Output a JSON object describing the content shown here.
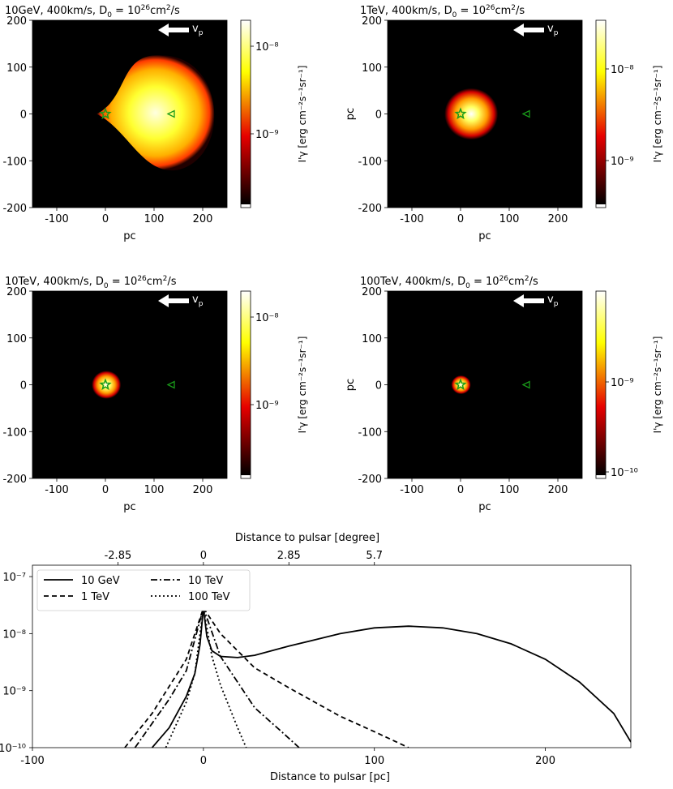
{
  "chart_data": [
    {
      "type": "heatmap",
      "title": "10GeV, 400km/s, D",
      "title_sub": "0",
      "title_eq": " = 10",
      "title_sup": "26",
      "title_unit": "cm",
      "title_unit_sup": "2",
      "title_unit_end": "/s",
      "xlabel": "pc",
      "ylabel": "",
      "xlim": [
        -150,
        250
      ],
      "ylim": [
        -200,
        200
      ],
      "xticks": [
        "-100",
        "0",
        "100",
        "200"
      ],
      "yticks": [
        "200",
        "100",
        "0",
        "-100",
        "-200"
      ],
      "arrow_label": "v",
      "arrow_sub": "p",
      "pulsar_pos": [
        0,
        0
      ],
      "source_pos": [
        135,
        0
      ],
      "blob": {
        "center": [
          115,
          0
        ],
        "radius": 125,
        "compression_left": 0.7
      },
      "colorbar": {
        "label": "I'γ [erg cm⁻²s⁻¹sr⁻¹]",
        "ticks": [
          "10⁻⁸",
          "10⁻⁹"
        ],
        "tick_exp": [
          -8,
          -9
        ]
      }
    },
    {
      "type": "heatmap",
      "title": "1TeV, 400km/s, D",
      "title_sub": "0",
      "title_eq": " = 10",
      "title_sup": "26",
      "title_unit": "cm",
      "title_unit_sup": "2",
      "title_unit_end": "/s",
      "xlabel": "pc",
      "ylabel": "pc",
      "xlim": [
        -150,
        250
      ],
      "ylim": [
        -200,
        200
      ],
      "xticks": [
        "-100",
        "0",
        "100",
        "200"
      ],
      "yticks": [
        "200",
        "100",
        "0",
        "-100",
        "-200"
      ],
      "arrow_label": "v",
      "arrow_sub": "p",
      "pulsar_pos": [
        0,
        0
      ],
      "source_pos": [
        135,
        0
      ],
      "blob": {
        "center": [
          22,
          0
        ],
        "radius": 55
      },
      "colorbar": {
        "label": "I'γ [erg cm⁻²s⁻¹sr⁻¹]",
        "ticks": [
          "10⁻⁸",
          "10⁻⁹"
        ],
        "tick_exp": [
          -8,
          -9
        ]
      }
    },
    {
      "type": "heatmap",
      "title": "10TeV, 400km/s, D",
      "title_sub": "0",
      "title_eq": " = 10",
      "title_sup": "26",
      "title_unit": "cm",
      "title_unit_sup": "2",
      "title_unit_end": "/s",
      "xlabel": "pc",
      "ylabel": "",
      "xlim": [
        -150,
        250
      ],
      "ylim": [
        -200,
        200
      ],
      "xticks": [
        "-100",
        "0",
        "100",
        "200"
      ],
      "yticks": [
        "200",
        "100",
        "0",
        "-100",
        "-200"
      ],
      "arrow_label": "v",
      "arrow_sub": "p",
      "pulsar_pos": [
        0,
        0
      ],
      "source_pos": [
        135,
        0
      ],
      "blob": {
        "center": [
          2,
          0
        ],
        "radius": 30
      },
      "colorbar": {
        "label": "I'γ [erg cm⁻²s⁻¹sr⁻¹]",
        "ticks": [
          "10⁻⁸",
          "10⁻⁹"
        ],
        "tick_exp": [
          -8,
          -9
        ]
      }
    },
    {
      "type": "heatmap",
      "title": "100TeV, 400km/s, D",
      "title_sub": "0",
      "title_eq": " = 10",
      "title_sup": "26",
      "title_unit": "cm",
      "title_unit_sup": "2",
      "title_unit_end": "/s",
      "xlabel": "pc",
      "ylabel": "pc",
      "xlim": [
        -150,
        250
      ],
      "ylim": [
        -200,
        200
      ],
      "xticks": [
        "-100",
        "0",
        "100",
        "200"
      ],
      "yticks": [
        "200",
        "100",
        "0",
        "-100",
        "-200"
      ],
      "arrow_label": "v",
      "arrow_sub": "p",
      "pulsar_pos": [
        0,
        0
      ],
      "source_pos": [
        135,
        0
      ],
      "blob": {
        "center": [
          1,
          0
        ],
        "radius": 20
      },
      "colorbar": {
        "label": "I'γ [erg cm⁻²s⁻¹sr⁻¹]",
        "ticks": [
          "10⁻⁹",
          "10⁻¹⁰"
        ],
        "tick_exp": [
          -9,
          -10
        ]
      }
    },
    {
      "type": "line",
      "title": "",
      "xlabel": "Distance to pulsar [pc]",
      "x2label": "Distance to pulsar [degree]",
      "xlim": [
        -100,
        250
      ],
      "ylim_log10": [
        -10,
        -6.8
      ],
      "xticks": [
        -100,
        0,
        100,
        200
      ],
      "xtick_labels": [
        "-100",
        "0",
        "100",
        "200"
      ],
      "x2ticks_pc": [
        -50,
        0,
        50,
        100
      ],
      "x2tick_labels": [
        "-2.85",
        "0",
        "2.85",
        "5.7"
      ],
      "yticks_log10": [
        -7,
        -8,
        -9,
        -10
      ],
      "ytick_labels": [
        "10⁻⁷",
        "10⁻⁸",
        "10⁻⁹",
        "10⁻¹⁰"
      ],
      "legend": [
        "10 GeV",
        "1 TeV",
        "10 TeV",
        "100 TeV"
      ],
      "legend_position": "top-left",
      "series": [
        {
          "name": "10 GeV",
          "dash": "solid",
          "x": [
            -30,
            -20,
            -10,
            -5,
            -2,
            0,
            2,
            5,
            10,
            20,
            30,
            50,
            80,
            100,
            120,
            140,
            160,
            180,
            200,
            220,
            240,
            250
          ],
          "log10_y": [
            -10,
            -9.65,
            -9.1,
            -8.7,
            -8.2,
            -7.55,
            -8.05,
            -8.3,
            -8.4,
            -8.42,
            -8.38,
            -8.22,
            -8.0,
            -7.9,
            -7.87,
            -7.9,
            -8.0,
            -8.18,
            -8.45,
            -8.85,
            -9.4,
            -9.9
          ]
        },
        {
          "name": "1 TeV",
          "dash": "dashed",
          "x": [
            -46,
            -30,
            -10,
            0,
            10,
            30,
            50,
            80,
            100,
            120
          ],
          "log10_y": [
            -10,
            -9.4,
            -8.45,
            -7.55,
            -8.0,
            -8.6,
            -8.95,
            -9.45,
            -9.72,
            -10
          ]
        },
        {
          "name": "10 TeV",
          "dash": "dashdot",
          "x": [
            -40,
            -20,
            -10,
            0,
            10,
            30,
            45,
            56
          ],
          "log10_y": [
            -10,
            -9.15,
            -8.65,
            -7.55,
            -8.4,
            -9.3,
            -9.7,
            -10
          ]
        },
        {
          "name": "100 TeV",
          "dash": "dotted",
          "x": [
            -22,
            -10,
            -5,
            0,
            5,
            10,
            20,
            25
          ],
          "log10_y": [
            -10,
            -9.2,
            -8.7,
            -7.55,
            -8.4,
            -8.9,
            -9.65,
            -10
          ]
        }
      ]
    }
  ]
}
